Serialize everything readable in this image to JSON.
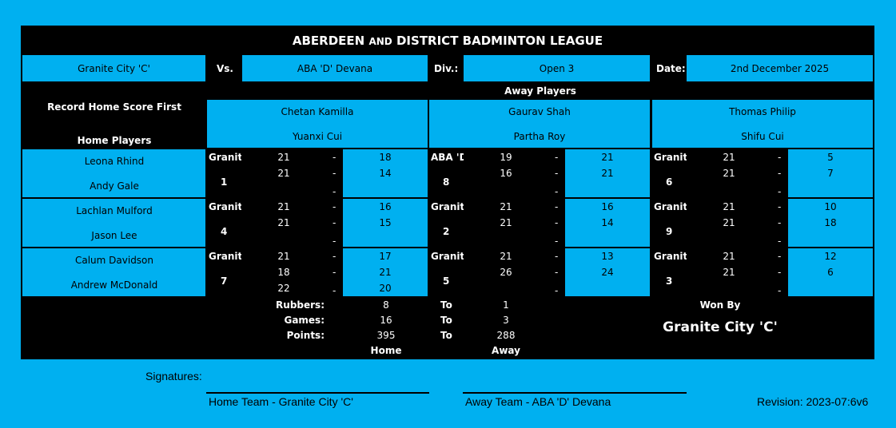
{
  "title_main": "ABERDEEN",
  "title_and": "AND",
  "title_rest": "DISTRICT BADMINTON LEAGUE",
  "header": {
    "home_team": "Granite City 'C'",
    "vs_label": "Vs.",
    "away_team": "ABA 'D' Devana",
    "div_label": "Div.:",
    "division": "Open 3",
    "date_label": "Date:",
    "date": "2nd December 2025"
  },
  "record_note": "Record Home Score First",
  "home_players_label": "Home Players",
  "away_players_label": "Away Players",
  "away_pairs": [
    [
      "Chetan Kamilla",
      "Yuanxi Cui"
    ],
    [
      "Gaurav Shah",
      "Partha Roy"
    ],
    [
      "Thomas Philip",
      "Shifu Cui"
    ]
  ],
  "home_pairs": [
    [
      "Leona Rhind",
      "Andy Gale"
    ],
    [
      "Lachlan Mulford",
      "Jason Lee"
    ],
    [
      "Calum Davidson",
      "Andrew McDonald"
    ]
  ],
  "matches": [
    [
      {
        "winner": "Granit",
        "order": "1",
        "home": [
          "21",
          "21",
          ""
        ],
        "away": [
          "18",
          "14",
          ""
        ]
      },
      {
        "winner": "ABA 'D",
        "order": "8",
        "home": [
          "19",
          "16",
          ""
        ],
        "away": [
          "21",
          "21",
          ""
        ]
      },
      {
        "winner": "Granit",
        "order": "6",
        "home": [
          "21",
          "21",
          ""
        ],
        "away": [
          "5",
          "7",
          ""
        ]
      }
    ],
    [
      {
        "winner": "Granit",
        "order": "4",
        "home": [
          "21",
          "21",
          ""
        ],
        "away": [
          "16",
          "15",
          ""
        ]
      },
      {
        "winner": "Granit",
        "order": "2",
        "home": [
          "21",
          "21",
          ""
        ],
        "away": [
          "16",
          "14",
          ""
        ]
      },
      {
        "winner": "Granit",
        "order": "9",
        "home": [
          "21",
          "21",
          ""
        ],
        "away": [
          "10",
          "18",
          ""
        ]
      }
    ],
    [
      {
        "winner": "Granit",
        "order": "7",
        "home": [
          "21",
          "18",
          "22"
        ],
        "away": [
          "17",
          "21",
          "20"
        ]
      },
      {
        "winner": "Granit",
        "order": "5",
        "home": [
          "21",
          "26",
          ""
        ],
        "away": [
          "13",
          "24",
          ""
        ]
      },
      {
        "winner": "Granit",
        "order": "3",
        "home": [
          "21",
          "21",
          ""
        ],
        "away": [
          "12",
          "6",
          ""
        ]
      }
    ]
  ],
  "dash": "-",
  "summary": {
    "rows": [
      {
        "label": "Rubbers:",
        "home": "8",
        "to": "To",
        "away": "1"
      },
      {
        "label": "Games:",
        "home": "16",
        "to": "To",
        "away": "3"
      },
      {
        "label": "Points:",
        "home": "395",
        "to": "To",
        "away": "288"
      }
    ],
    "home_label": "Home",
    "away_label": "Away",
    "won_by_label": "Won By",
    "winner": "Granite City 'C'"
  },
  "footer": {
    "signatures_label": "Signatures:",
    "home_sig": "Home Team - Granite City 'C'",
    "away_sig": "Away Team - ABA 'D' Devana",
    "revision": "Revision: 2023-07:6v6"
  },
  "colors": {
    "accent": "#00b0f0",
    "panel": "#000000"
  }
}
